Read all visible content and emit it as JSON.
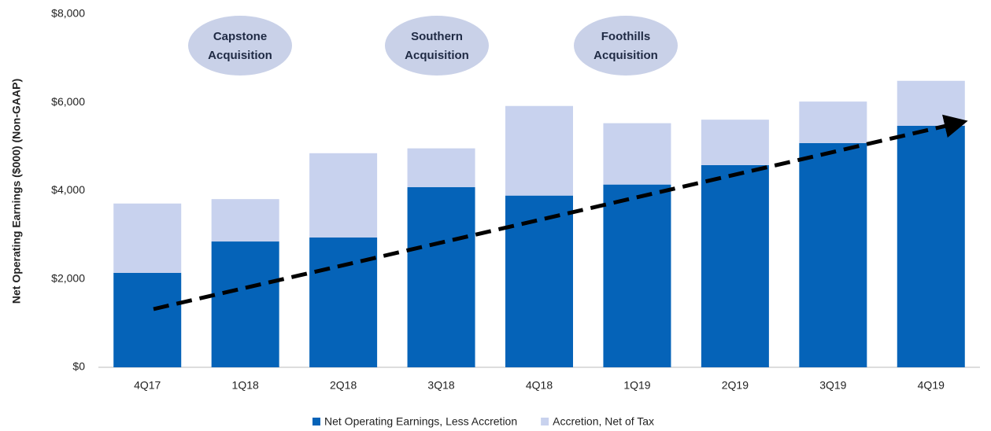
{
  "chart_data": {
    "type": "stacked_bar",
    "y_label": "Net Operating Earnings ($000) (Non-GAAP)",
    "categories": [
      "4Q17",
      "1Q18",
      "2Q18",
      "3Q18",
      "4Q18",
      "1Q19",
      "2Q19",
      "3Q19",
      "4Q19"
    ],
    "series": [
      {
        "name": "Net Operating Earnings, Less Accretion",
        "color": "#0563b8",
        "values": [
          2140,
          2850,
          2940,
          4080,
          3890,
          4140,
          4580,
          5080,
          5470
        ]
      },
      {
        "name": "Accretion, Net of Tax",
        "color": "#c8d2ee",
        "values": [
          1570,
          960,
          1910,
          880,
          2030,
          1390,
          1030,
          940,
          1020
        ]
      }
    ],
    "ylim": [
      0,
      8000
    ],
    "yticks": [
      {
        "value": 0,
        "label": "$0"
      },
      {
        "value": 2000,
        "label": "$2,000"
      },
      {
        "value": 4000,
        "label": "$4,000"
      },
      {
        "value": 6000,
        "label": "$6,000"
      },
      {
        "value": 8000,
        "label": "$8,000"
      }
    ],
    "grid": false,
    "legend": "bottom",
    "annotations": [
      [
        "Capstone",
        "Acquisition"
      ],
      [
        "Southern",
        "Acquisition"
      ],
      [
        "Foothills",
        "Acquisition"
      ]
    ]
  }
}
